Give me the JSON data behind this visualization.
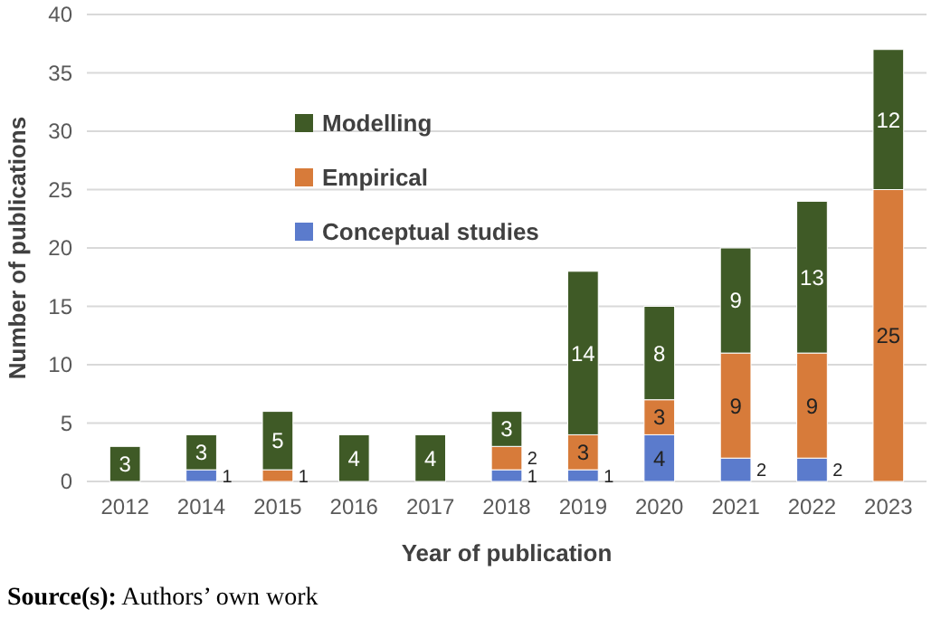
{
  "chart_data": {
    "type": "bar",
    "stacked": true,
    "xlabel": "Year of publication",
    "ylabel": "Number of publications",
    "categories": [
      "2012",
      "2014",
      "2015",
      "2016",
      "2017",
      "2018",
      "2019",
      "2020",
      "2021",
      "2022",
      "2023"
    ],
    "series": [
      {
        "name": "Conceptual studies",
        "color": "#5b7bcc",
        "values": [
          0,
          1,
          0,
          0,
          0,
          1,
          1,
          4,
          2,
          2,
          0
        ],
        "value_labels": [
          null,
          "1",
          null,
          null,
          null,
          "1",
          "1",
          "4",
          "2",
          "2",
          null
        ]
      },
      {
        "name": "Empirical",
        "color": "#d77b3a",
        "values": [
          0,
          0,
          1,
          0,
          0,
          2,
          3,
          3,
          9,
          9,
          25
        ],
        "value_labels": [
          null,
          null,
          "1",
          null,
          null,
          "2",
          "3",
          "3",
          "9",
          "9",
          "25"
        ]
      },
      {
        "name": "Modelling",
        "color": "#3f5a26",
        "values": [
          3,
          3,
          5,
          4,
          4,
          3,
          14,
          8,
          9,
          13,
          12
        ],
        "value_labels": [
          "3",
          "3",
          "5",
          "4",
          "4",
          "3",
          "14",
          "8",
          "9",
          "13",
          "12"
        ]
      }
    ],
    "ylim": [
      0,
      40
    ],
    "yticks": [
      0,
      5,
      10,
      15,
      20,
      25,
      30,
      35,
      40
    ],
    "grid": "y",
    "legend": "top left",
    "annotations": [
      "Source(s): Authors’ own work"
    ]
  }
}
